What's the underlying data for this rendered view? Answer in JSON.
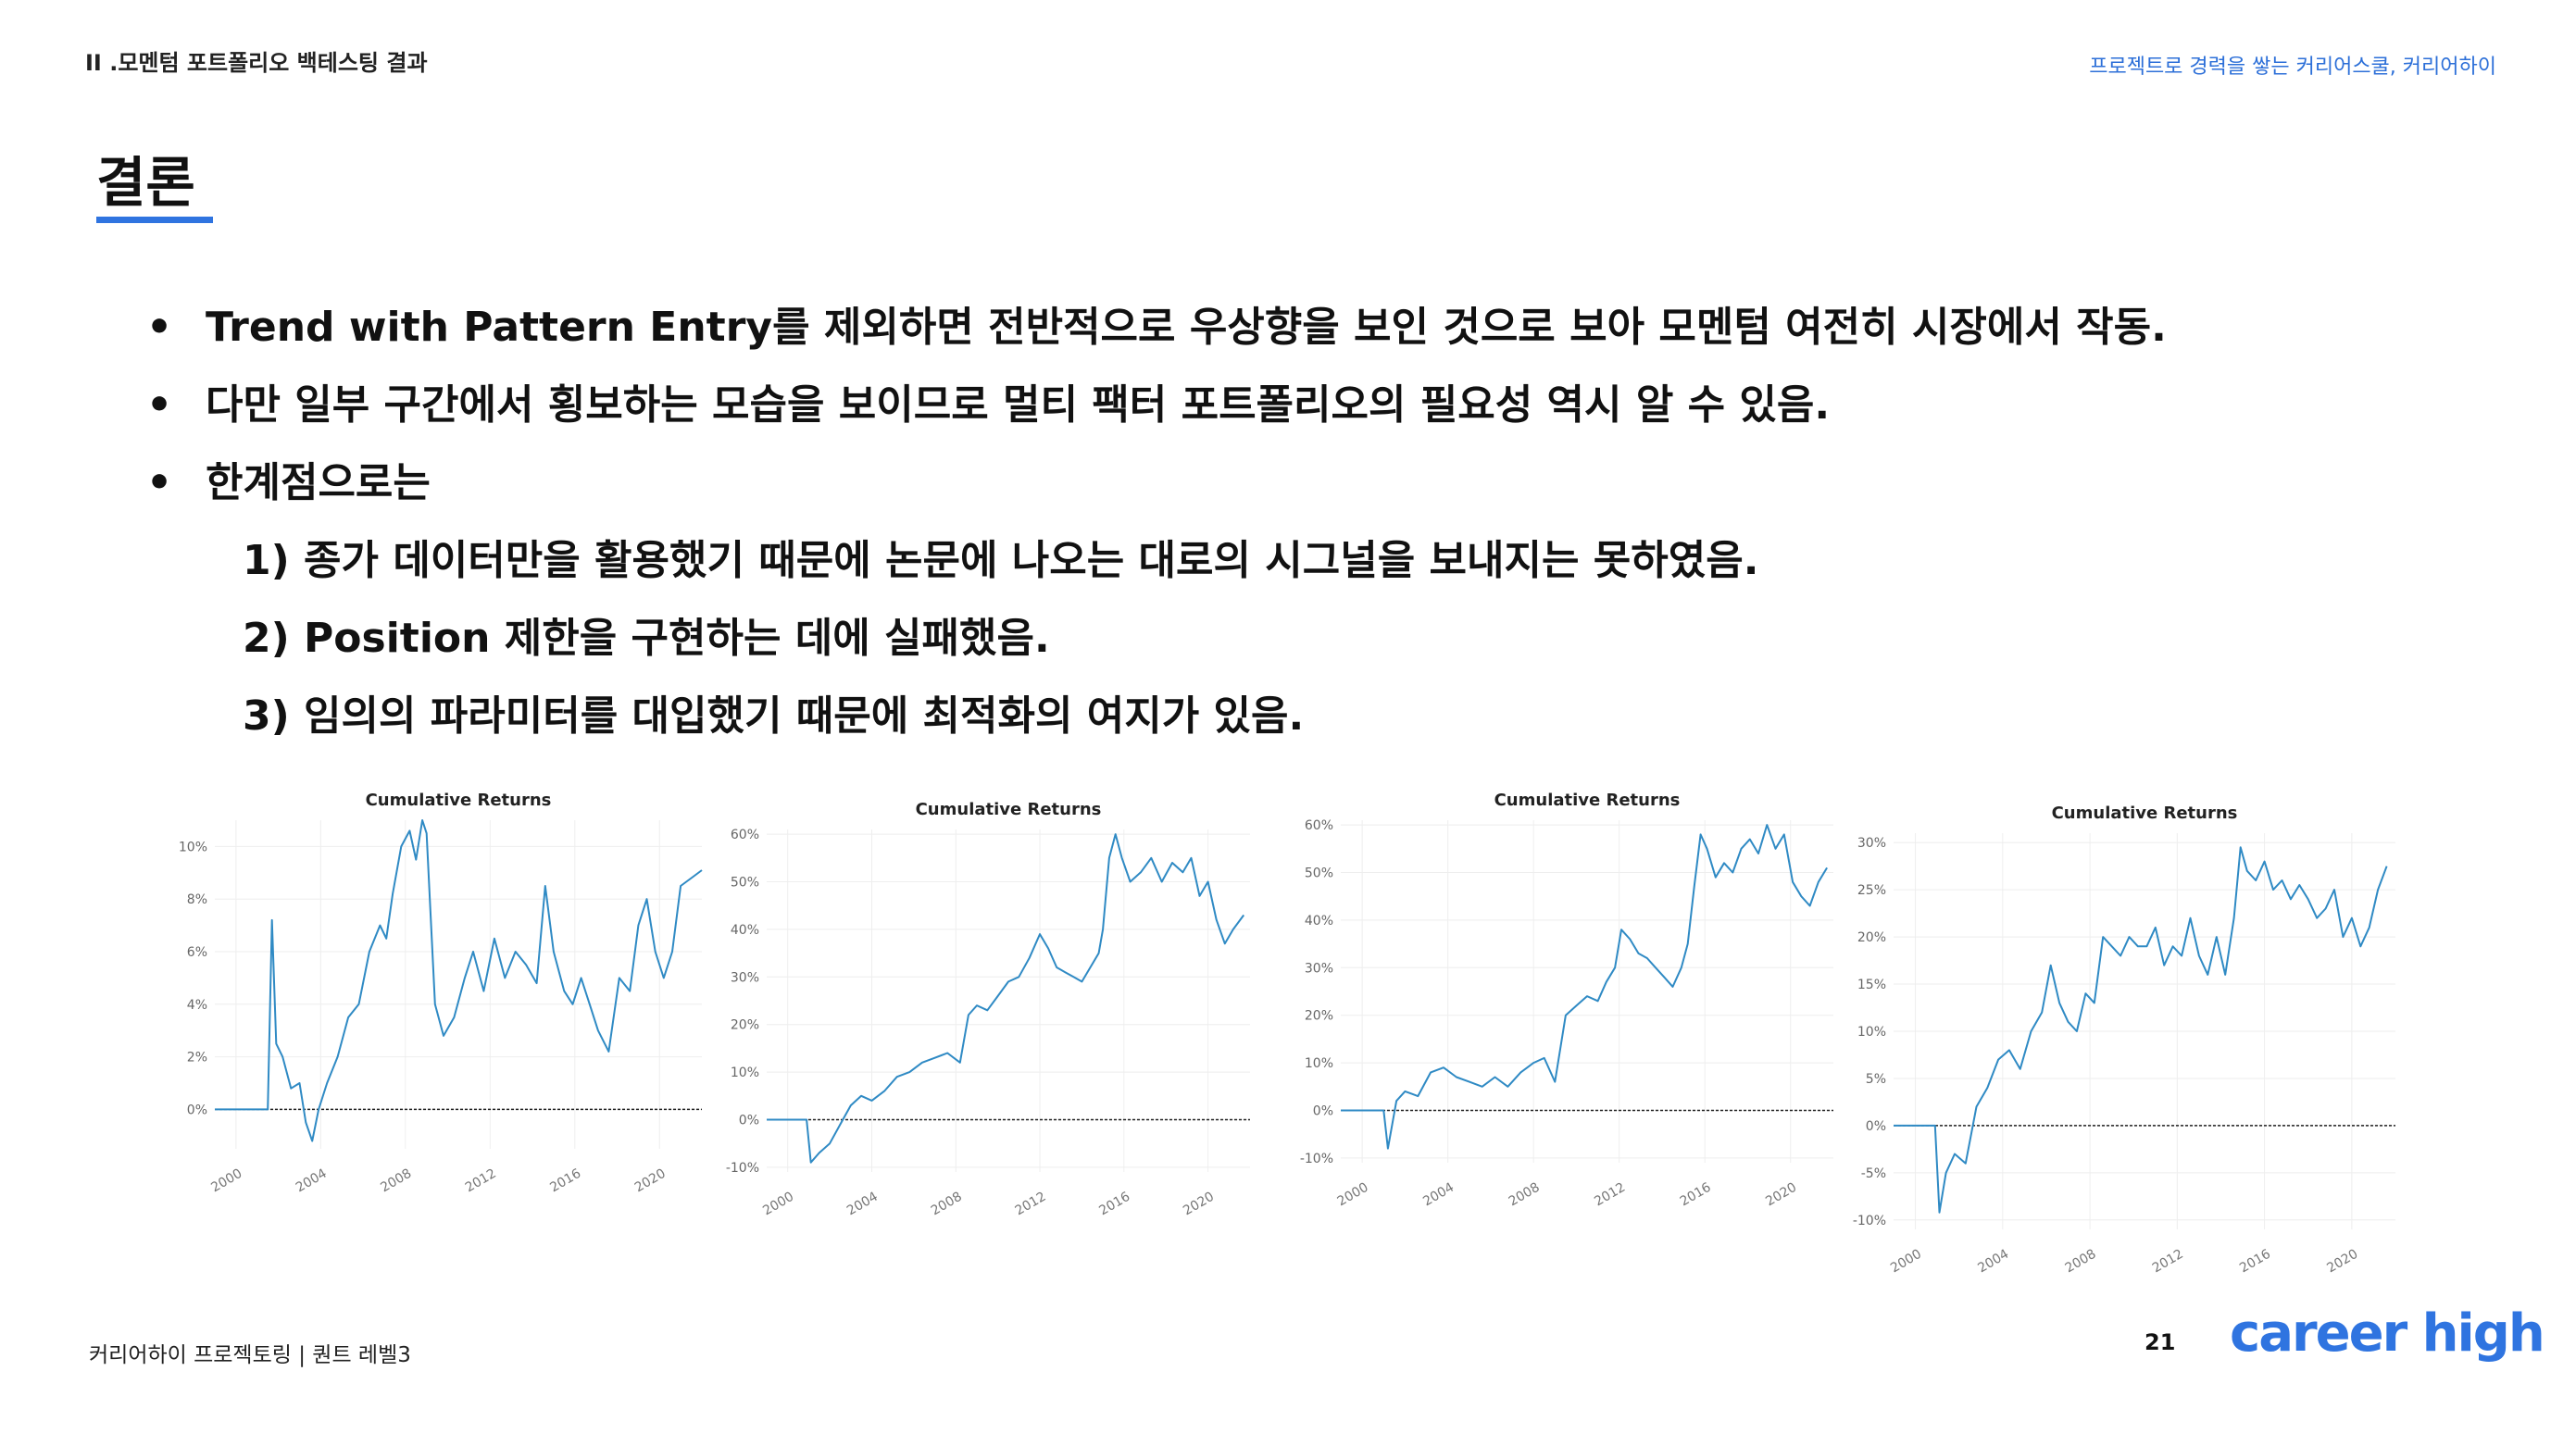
{
  "header": {
    "section": "II .모멘텀 포트폴리오 백테스팅 결과",
    "tagline": "프로젝트로 경력을 쌓는 커리어스쿨, 커리어하이"
  },
  "title": "결론",
  "bullets": [
    {
      "type": "main",
      "text": "Trend with Pattern Entry를 제외하면 전반적으로 우상향을 보인 것으로 보아 모멘텀 여전히 시장에서 작동."
    },
    {
      "type": "main",
      "text": "다만 일부 구간에서 횡보하는 모습을 보이므로 멀티 팩터 포트폴리오의 필요성 역시 알 수 있음."
    },
    {
      "type": "main",
      "text": "한계점으로는"
    },
    {
      "type": "sub",
      "text": "1) 종가 데이터만을 활용했기 때문에 논문에 나오는 대로의 시그널을 보내지는 못하였음."
    },
    {
      "type": "sub",
      "text": "2) Position 제한을 구현하는 데에 실패했음."
    },
    {
      "type": "sub",
      "text": "3) 임의의 파라미터를 대입했기 때문에 최적화의 여지가 있음."
    }
  ],
  "bullet_symbol": "•",
  "chart_data": [
    {
      "type": "line",
      "title": "Cumulative Returns",
      "ylim": [
        -0.015,
        0.11
      ],
      "yticks": [
        0,
        2,
        4,
        6,
        8,
        10
      ],
      "ytick_labels": [
        "0%",
        "2%",
        "4%",
        "6%",
        "8%",
        "10%"
      ],
      "xlim": [
        1999,
        2022
      ],
      "xticks": [
        2000,
        2004,
        2008,
        2012,
        2016,
        2020
      ],
      "xtick_labels": [
        "2000",
        "2004",
        "2008",
        "2012",
        "2016",
        "2020"
      ],
      "grid": true,
      "baseline": 0,
      "color": "#2f8ac4",
      "series": [
        {
          "x": [
            1999.0,
            2001.5,
            2001.7,
            2001.9,
            2002.2,
            2002.6,
            2003.0,
            2003.3,
            2003.6,
            2003.9,
            2004.3,
            2004.8,
            2005.3,
            2005.8,
            2006.3,
            2006.8,
            2007.1,
            2007.4,
            2007.8,
            2008.2,
            2008.5,
            2008.8,
            2009.0,
            2009.4,
            2009.8,
            2010.3,
            2010.8,
            2011.2,
            2011.7,
            2012.2,
            2012.7,
            2013.2,
            2013.7,
            2014.2,
            2014.6,
            2015.0,
            2015.5,
            2015.9,
            2016.3,
            2016.7,
            2017.1,
            2017.6,
            2018.1,
            2018.6,
            2019.0,
            2019.4,
            2019.8,
            2020.2,
            2020.6,
            2021.0,
            2021.5,
            2022.0
          ],
          "y": [
            0,
            0,
            0.072,
            0.025,
            0.02,
            0.008,
            0.01,
            -0.005,
            -0.012,
            0.0,
            0.01,
            0.02,
            0.035,
            0.04,
            0.06,
            0.07,
            0.065,
            0.082,
            0.1,
            0.106,
            0.095,
            0.11,
            0.105,
            0.04,
            0.028,
            0.035,
            0.05,
            0.06,
            0.045,
            0.065,
            0.05,
            0.06,
            0.055,
            0.048,
            0.085,
            0.06,
            0.045,
            0.04,
            0.05,
            0.04,
            0.03,
            0.022,
            0.05,
            0.045,
            0.07,
            0.08,
            0.06,
            0.05,
            0.06,
            0.085,
            0.088,
            0.091
          ]
        }
      ]
    },
    {
      "type": "line",
      "title": "Cumulative Returns",
      "ylim": [
        -0.11,
        0.61
      ],
      "yticks": [
        -10,
        0,
        10,
        20,
        30,
        40,
        50,
        60
      ],
      "ytick_labels": [
        "-10%",
        "0%",
        "10%",
        "20%",
        "30%",
        "40%",
        "50%",
        "60%"
      ],
      "xlim": [
        1999,
        2022
      ],
      "xticks": [
        2000,
        2004,
        2008,
        2012,
        2016,
        2020
      ],
      "xtick_labels": [
        "2000",
        "2004",
        "2008",
        "2012",
        "2016",
        "2020"
      ],
      "grid": true,
      "baseline": 0,
      "color": "#2f8ac4",
      "series": [
        {
          "x": [
            1999.0,
            2000.9,
            2001.1,
            2001.5,
            2002.0,
            2002.5,
            2003.0,
            2003.5,
            2004.0,
            2004.6,
            2005.2,
            2005.8,
            2006.4,
            2007.0,
            2007.6,
            2008.2,
            2008.6,
            2009.0,
            2009.5,
            2010.0,
            2010.5,
            2011.0,
            2011.5,
            2012.0,
            2012.4,
            2012.8,
            2013.2,
            2013.6,
            2014.0,
            2014.4,
            2014.8,
            2015.0,
            2015.3,
            2015.6,
            2015.9,
            2016.3,
            2016.8,
            2017.3,
            2017.8,
            2018.3,
            2018.8,
            2019.2,
            2019.6,
            2020.0,
            2020.4,
            2020.8,
            2021.2,
            2021.7
          ],
          "y": [
            0,
            0,
            -0.09,
            -0.07,
            -0.05,
            -0.01,
            0.03,
            0.05,
            0.04,
            0.06,
            0.09,
            0.1,
            0.12,
            0.13,
            0.14,
            0.12,
            0.22,
            0.24,
            0.23,
            0.26,
            0.29,
            0.3,
            0.34,
            0.39,
            0.36,
            0.32,
            0.31,
            0.3,
            0.29,
            0.32,
            0.35,
            0.4,
            0.55,
            0.6,
            0.55,
            0.5,
            0.52,
            0.55,
            0.5,
            0.54,
            0.52,
            0.55,
            0.47,
            0.5,
            0.42,
            0.37,
            0.4,
            0.43
          ]
        }
      ]
    },
    {
      "type": "line",
      "title": "Cumulative Returns",
      "ylim": [
        -0.11,
        0.61
      ],
      "yticks": [
        -10,
        0,
        10,
        20,
        30,
        40,
        50,
        60
      ],
      "ytick_labels": [
        "-10%",
        "0%",
        "10%",
        "20%",
        "30%",
        "40%",
        "50%",
        "60%"
      ],
      "xlim": [
        1999,
        2022
      ],
      "xticks": [
        2000,
        2004,
        2008,
        2012,
        2016,
        2020
      ],
      "xtick_labels": [
        "2000",
        "2004",
        "2008",
        "2012",
        "2016",
        "2020"
      ],
      "grid": true,
      "baseline": 0,
      "color": "#2f8ac4",
      "series": [
        {
          "x": [
            1999.0,
            2001.0,
            2001.2,
            2001.6,
            2002.0,
            2002.6,
            2003.2,
            2003.8,
            2004.4,
            2005.0,
            2005.6,
            2006.2,
            2006.8,
            2007.4,
            2008.0,
            2008.5,
            2009.0,
            2009.5,
            2010.0,
            2010.5,
            2011.0,
            2011.4,
            2011.8,
            2012.1,
            2012.5,
            2012.9,
            2013.3,
            2013.7,
            2014.1,
            2014.5,
            2014.9,
            2015.2,
            2015.5,
            2015.8,
            2016.1,
            2016.5,
            2016.9,
            2017.3,
            2017.7,
            2018.1,
            2018.5,
            2018.9,
            2019.3,
            2019.7,
            2020.1,
            2020.5,
            2020.9,
            2021.3,
            2021.7
          ],
          "y": [
            0,
            0,
            -0.08,
            0.02,
            0.04,
            0.03,
            0.08,
            0.09,
            0.07,
            0.06,
            0.05,
            0.07,
            0.05,
            0.08,
            0.1,
            0.11,
            0.06,
            0.2,
            0.22,
            0.24,
            0.23,
            0.27,
            0.3,
            0.38,
            0.36,
            0.33,
            0.32,
            0.3,
            0.28,
            0.26,
            0.3,
            0.35,
            0.47,
            0.58,
            0.55,
            0.49,
            0.52,
            0.5,
            0.55,
            0.57,
            0.54,
            0.6,
            0.55,
            0.58,
            0.48,
            0.45,
            0.43,
            0.48,
            0.51
          ]
        }
      ]
    },
    {
      "type": "line",
      "title": "Cumulative Returns",
      "ylim": [
        -0.11,
        0.31
      ],
      "yticks": [
        -10,
        -5,
        0,
        5,
        10,
        15,
        20,
        25,
        30
      ],
      "ytick_labels": [
        "-10%",
        "-5%",
        "0%",
        "5%",
        "10%",
        "15%",
        "20%",
        "25%",
        "30%"
      ],
      "xlim": [
        1999,
        2022
      ],
      "xticks": [
        2000,
        2004,
        2008,
        2012,
        2016,
        2020
      ],
      "xtick_labels": [
        "2000",
        "2004",
        "2008",
        "2012",
        "2016",
        "2020"
      ],
      "grid": true,
      "baseline": 0,
      "color": "#2f8ac4",
      "series": [
        {
          "x": [
            1999.0,
            2000.9,
            2001.1,
            2001.4,
            2001.8,
            2002.3,
            2002.8,
            2003.3,
            2003.8,
            2004.3,
            2004.8,
            2005.3,
            2005.8,
            2006.2,
            2006.6,
            2007.0,
            2007.4,
            2007.8,
            2008.2,
            2008.6,
            2009.0,
            2009.4,
            2009.8,
            2010.2,
            2010.6,
            2011.0,
            2011.4,
            2011.8,
            2012.2,
            2012.6,
            2013.0,
            2013.4,
            2013.8,
            2014.2,
            2014.6,
            2014.9,
            2015.2,
            2015.6,
            2016.0,
            2016.4,
            2016.8,
            2017.2,
            2017.6,
            2018.0,
            2018.4,
            2018.8,
            2019.2,
            2019.6,
            2020.0,
            2020.4,
            2020.8,
            2021.2,
            2021.6
          ],
          "y": [
            0,
            0,
            -0.092,
            -0.05,
            -0.03,
            -0.04,
            0.02,
            0.04,
            0.07,
            0.08,
            0.06,
            0.1,
            0.12,
            0.17,
            0.13,
            0.11,
            0.1,
            0.14,
            0.13,
            0.2,
            0.19,
            0.18,
            0.2,
            0.19,
            0.19,
            0.21,
            0.17,
            0.19,
            0.18,
            0.22,
            0.18,
            0.16,
            0.2,
            0.16,
            0.22,
            0.295,
            0.27,
            0.26,
            0.28,
            0.25,
            0.26,
            0.24,
            0.255,
            0.24,
            0.22,
            0.23,
            0.25,
            0.2,
            0.22,
            0.19,
            0.21,
            0.25,
            0.275
          ]
        }
      ]
    }
  ],
  "footer": {
    "left": "커리어하이 프로젝토링  |  퀀트 레벨3",
    "page": "21",
    "brand": "career high"
  },
  "colors": {
    "accent": "#2f74e0",
    "tagline": "#2c6fd8",
    "line": "#2f8ac4"
  }
}
